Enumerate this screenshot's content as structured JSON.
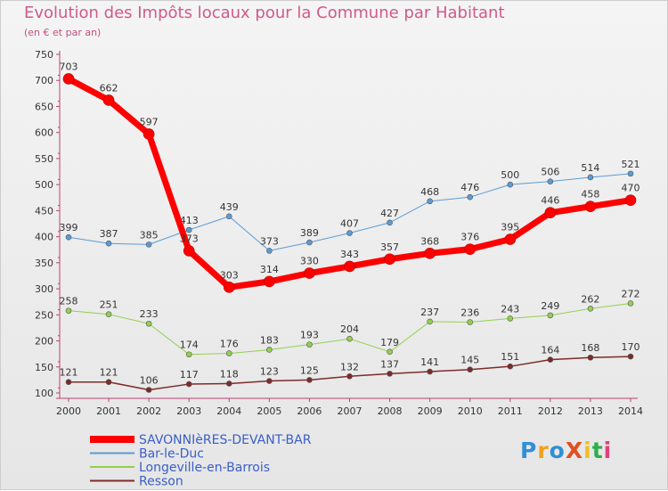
{
  "title": "Evolution des Impôts locaux pour la Commune par Habitant",
  "subtitle": "(en € et par an)",
  "logo_text": "ProXiti",
  "chart_data": {
    "type": "line",
    "title": "Evolution des Impôts locaux pour la Commune par Habitant",
    "subtitle": "(en € et par an)",
    "xlabel": "",
    "ylabel": "",
    "x": [
      "2000",
      "2001",
      "2002",
      "2003",
      "2004",
      "2005",
      "2006",
      "2007",
      "2008",
      "2009",
      "2010",
      "2011",
      "2012",
      "2013",
      "2014"
    ],
    "ylim": [
      100,
      750
    ],
    "yticks": [
      100,
      150,
      200,
      250,
      300,
      350,
      400,
      450,
      500,
      550,
      600,
      650,
      700,
      750
    ],
    "grid": false,
    "legend_position": "bottom-left",
    "series": [
      {
        "name": "SAVONNIèRES-DEVANT-BAR",
        "color": "#ff0000",
        "values": [
          703,
          662,
          597,
          373,
          303,
          314,
          330,
          343,
          357,
          368,
          376,
          395,
          446,
          458,
          470
        ]
      },
      {
        "name": "Bar-le-Duc",
        "color": "#5b9bd5",
        "values": [
          399,
          387,
          385,
          413,
          439,
          373,
          389,
          407,
          427,
          468,
          476,
          500,
          506,
          514,
          521
        ]
      },
      {
        "name": "Longeville-en-Barrois",
        "color": "#92d050",
        "values": [
          258,
          251,
          233,
          174,
          176,
          183,
          193,
          204,
          179,
          237,
          236,
          243,
          249,
          262,
          272
        ]
      },
      {
        "name": "Resson",
        "color": "#7f2a2a",
        "values": [
          121,
          121,
          106,
          117,
          118,
          123,
          125,
          132,
          137,
          141,
          145,
          151,
          164,
          168,
          170
        ]
      }
    ]
  }
}
